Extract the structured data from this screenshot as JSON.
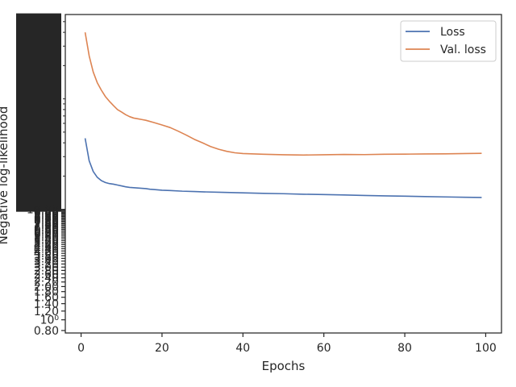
{
  "chart_data": {
    "type": "line",
    "title": "",
    "xlabel": "Epochs",
    "ylabel": "Negative log-likelihood",
    "yscale": "log",
    "xlim": [
      -3.9,
      103.9
    ],
    "ylim": [
      0.76,
      580
    ],
    "grid": false,
    "legend_position": "top-right",
    "x_ticks": [
      0,
      20,
      40,
      60,
      80,
      100
    ],
    "x_tick_labels": [
      "0",
      "20",
      "40",
      "60",
      "80",
      "100"
    ],
    "y_ticks": [
      0.8,
      1.0,
      1.2,
      1.4,
      1.6,
      1.8,
      2.0,
      2.2,
      2.4,
      2.6,
      2.8,
      3.0,
      3.2,
      3.4,
      3.6,
      3.8,
      4.0,
      4.2,
      4.4,
      4.6,
      4.8,
      5.0,
      5.2,
      5.4,
      5.6,
      5.8,
      6.0,
      6.2,
      6.4,
      6.6,
      6.8,
      7.0,
      7.2,
      7.4,
      7.6,
      7.8,
      8.0,
      8.2,
      8.4,
      8.6,
      8.8,
      9.0,
      9.2,
      9.4,
      9.6,
      9.8,
      10.0
    ],
    "y_tick_labels": [
      "0.80",
      "10⁰",
      "1.20",
      "1.40",
      "1.60",
      "1.80",
      "2.00",
      "2.20",
      "2.40",
      "2.60",
      "2.80",
      "3.00",
      "3.20",
      "3.40",
      "3.60",
      "3.80",
      "4.00",
      "4.20",
      "4.40",
      "4.60",
      "4.80",
      "5.00",
      "5.20",
      "5.40",
      "5.60",
      "5.80",
      "6.00",
      "6.20",
      "6.40",
      "6.60",
      "6.80",
      "7.00",
      "7.20",
      "7.40",
      "7.60",
      "7.80",
      "8.00",
      "8.20",
      "8.40",
      "8.60",
      "8.80",
      "9.00",
      "9.20",
      "9.40",
      "9.60",
      "9.80",
      "10.00"
    ],
    "series": [
      {
        "name": "Loss",
        "color": "#4c72b0",
        "x": [
          1,
          2,
          3,
          4,
          5,
          6,
          7,
          8,
          9,
          10,
          11,
          12,
          13,
          14,
          15,
          16,
          17,
          18,
          20,
          22,
          25,
          28,
          30,
          35,
          40,
          45,
          50,
          55,
          60,
          65,
          70,
          75,
          80,
          85,
          90,
          95,
          99
        ],
        "y": [
          44,
          27.5,
          22,
          19.5,
          18.2,
          17.5,
          17.1,
          16.9,
          16.6,
          16.3,
          16.0,
          15.8,
          15.7,
          15.6,
          15.5,
          15.4,
          15.2,
          15.1,
          14.9,
          14.8,
          14.6,
          14.5,
          14.4,
          14.25,
          14.1,
          13.95,
          13.85,
          13.7,
          13.6,
          13.5,
          13.35,
          13.25,
          13.15,
          13.05,
          12.95,
          12.85,
          12.8
        ]
      },
      {
        "name": "Val. loss",
        "color": "#dd8452",
        "x": [
          1,
          2,
          3,
          4,
          5,
          6,
          7,
          8,
          9,
          10,
          11,
          12,
          13,
          14,
          15,
          16,
          18,
          20,
          22,
          24,
          26,
          28,
          30,
          32,
          34,
          36,
          38,
          40,
          45,
          50,
          55,
          60,
          65,
          70,
          75,
          80,
          85,
          90,
          95,
          99
        ],
        "y": [
          400,
          245,
          175,
          140,
          120,
          105,
          95,
          87,
          80,
          76,
          72,
          69,
          67,
          66,
          65,
          64,
          61,
          58,
          55,
          51,
          47,
          43,
          40,
          37,
          35,
          33.5,
          32.5,
          32,
          31.5,
          31.2,
          31,
          31.2,
          31.4,
          31.3,
          31.5,
          31.6,
          31.7,
          31.8,
          32.0,
          32.1
        ]
      }
    ]
  }
}
